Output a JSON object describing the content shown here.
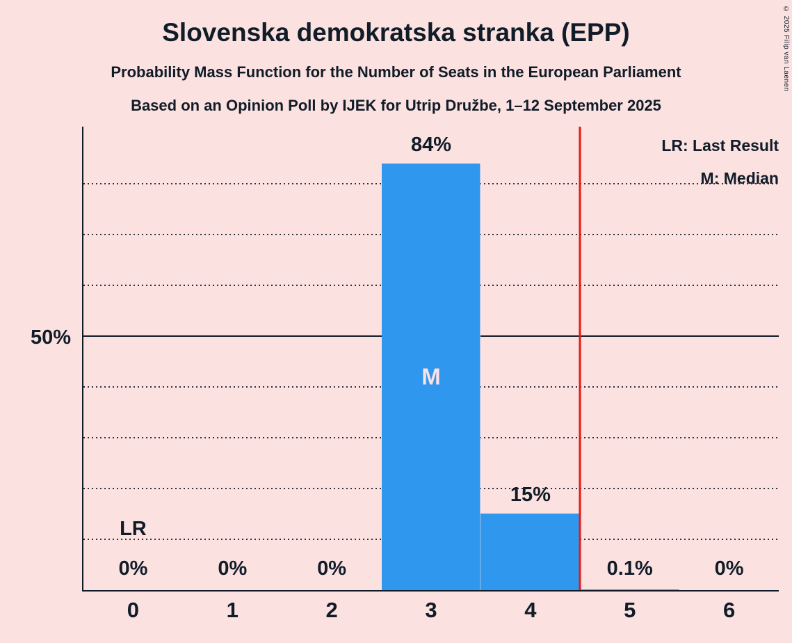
{
  "chart_data": {
    "type": "bar",
    "title": "Slovenska demokratska stranka (EPP)",
    "subtitle": "Probability Mass Function for the Number of Seats in the European Parliament",
    "subsubtitle": "Based on an Opinion Poll by IJEK for Utrip Družbe, 1–12 September 2025",
    "copyright": "© 2025 Filip van Laenen",
    "legend": {
      "last_result": "LR: Last Result",
      "median": "M: Median"
    },
    "legend_position": "top-right",
    "y_axis_tick_label": "50%",
    "categories": [
      "0",
      "1",
      "2",
      "3",
      "4",
      "5",
      "6"
    ],
    "values": [
      0,
      0,
      0,
      84,
      15,
      0.1,
      0
    ],
    "value_labels": [
      "0%",
      "0%",
      "0%",
      "84%",
      "15%",
      "0.1%",
      "0%"
    ],
    "ylim": [
      0,
      91.2
    ],
    "grid": true,
    "gridlines": [
      {
        "value": 10,
        "style": "dotted"
      },
      {
        "value": 20,
        "style": "dotted"
      },
      {
        "value": 30,
        "style": "dotted"
      },
      {
        "value": 40,
        "style": "dotted"
      },
      {
        "value": 50,
        "style": "solid"
      },
      {
        "value": 60,
        "style": "dotted"
      },
      {
        "value": 70,
        "style": "dotted"
      },
      {
        "value": 80,
        "style": "dotted"
      }
    ],
    "label_above_min_pct": 5,
    "median": {
      "category_index": 3,
      "label": "M"
    },
    "last_result": {
      "line_position_seats": 4.5,
      "label": "LR",
      "label_category_index": 0
    },
    "colors": {
      "background": "#fce1e1",
      "bar": "#2f97ee",
      "last_result_line": "#e8190f",
      "text": "#101c27"
    }
  }
}
